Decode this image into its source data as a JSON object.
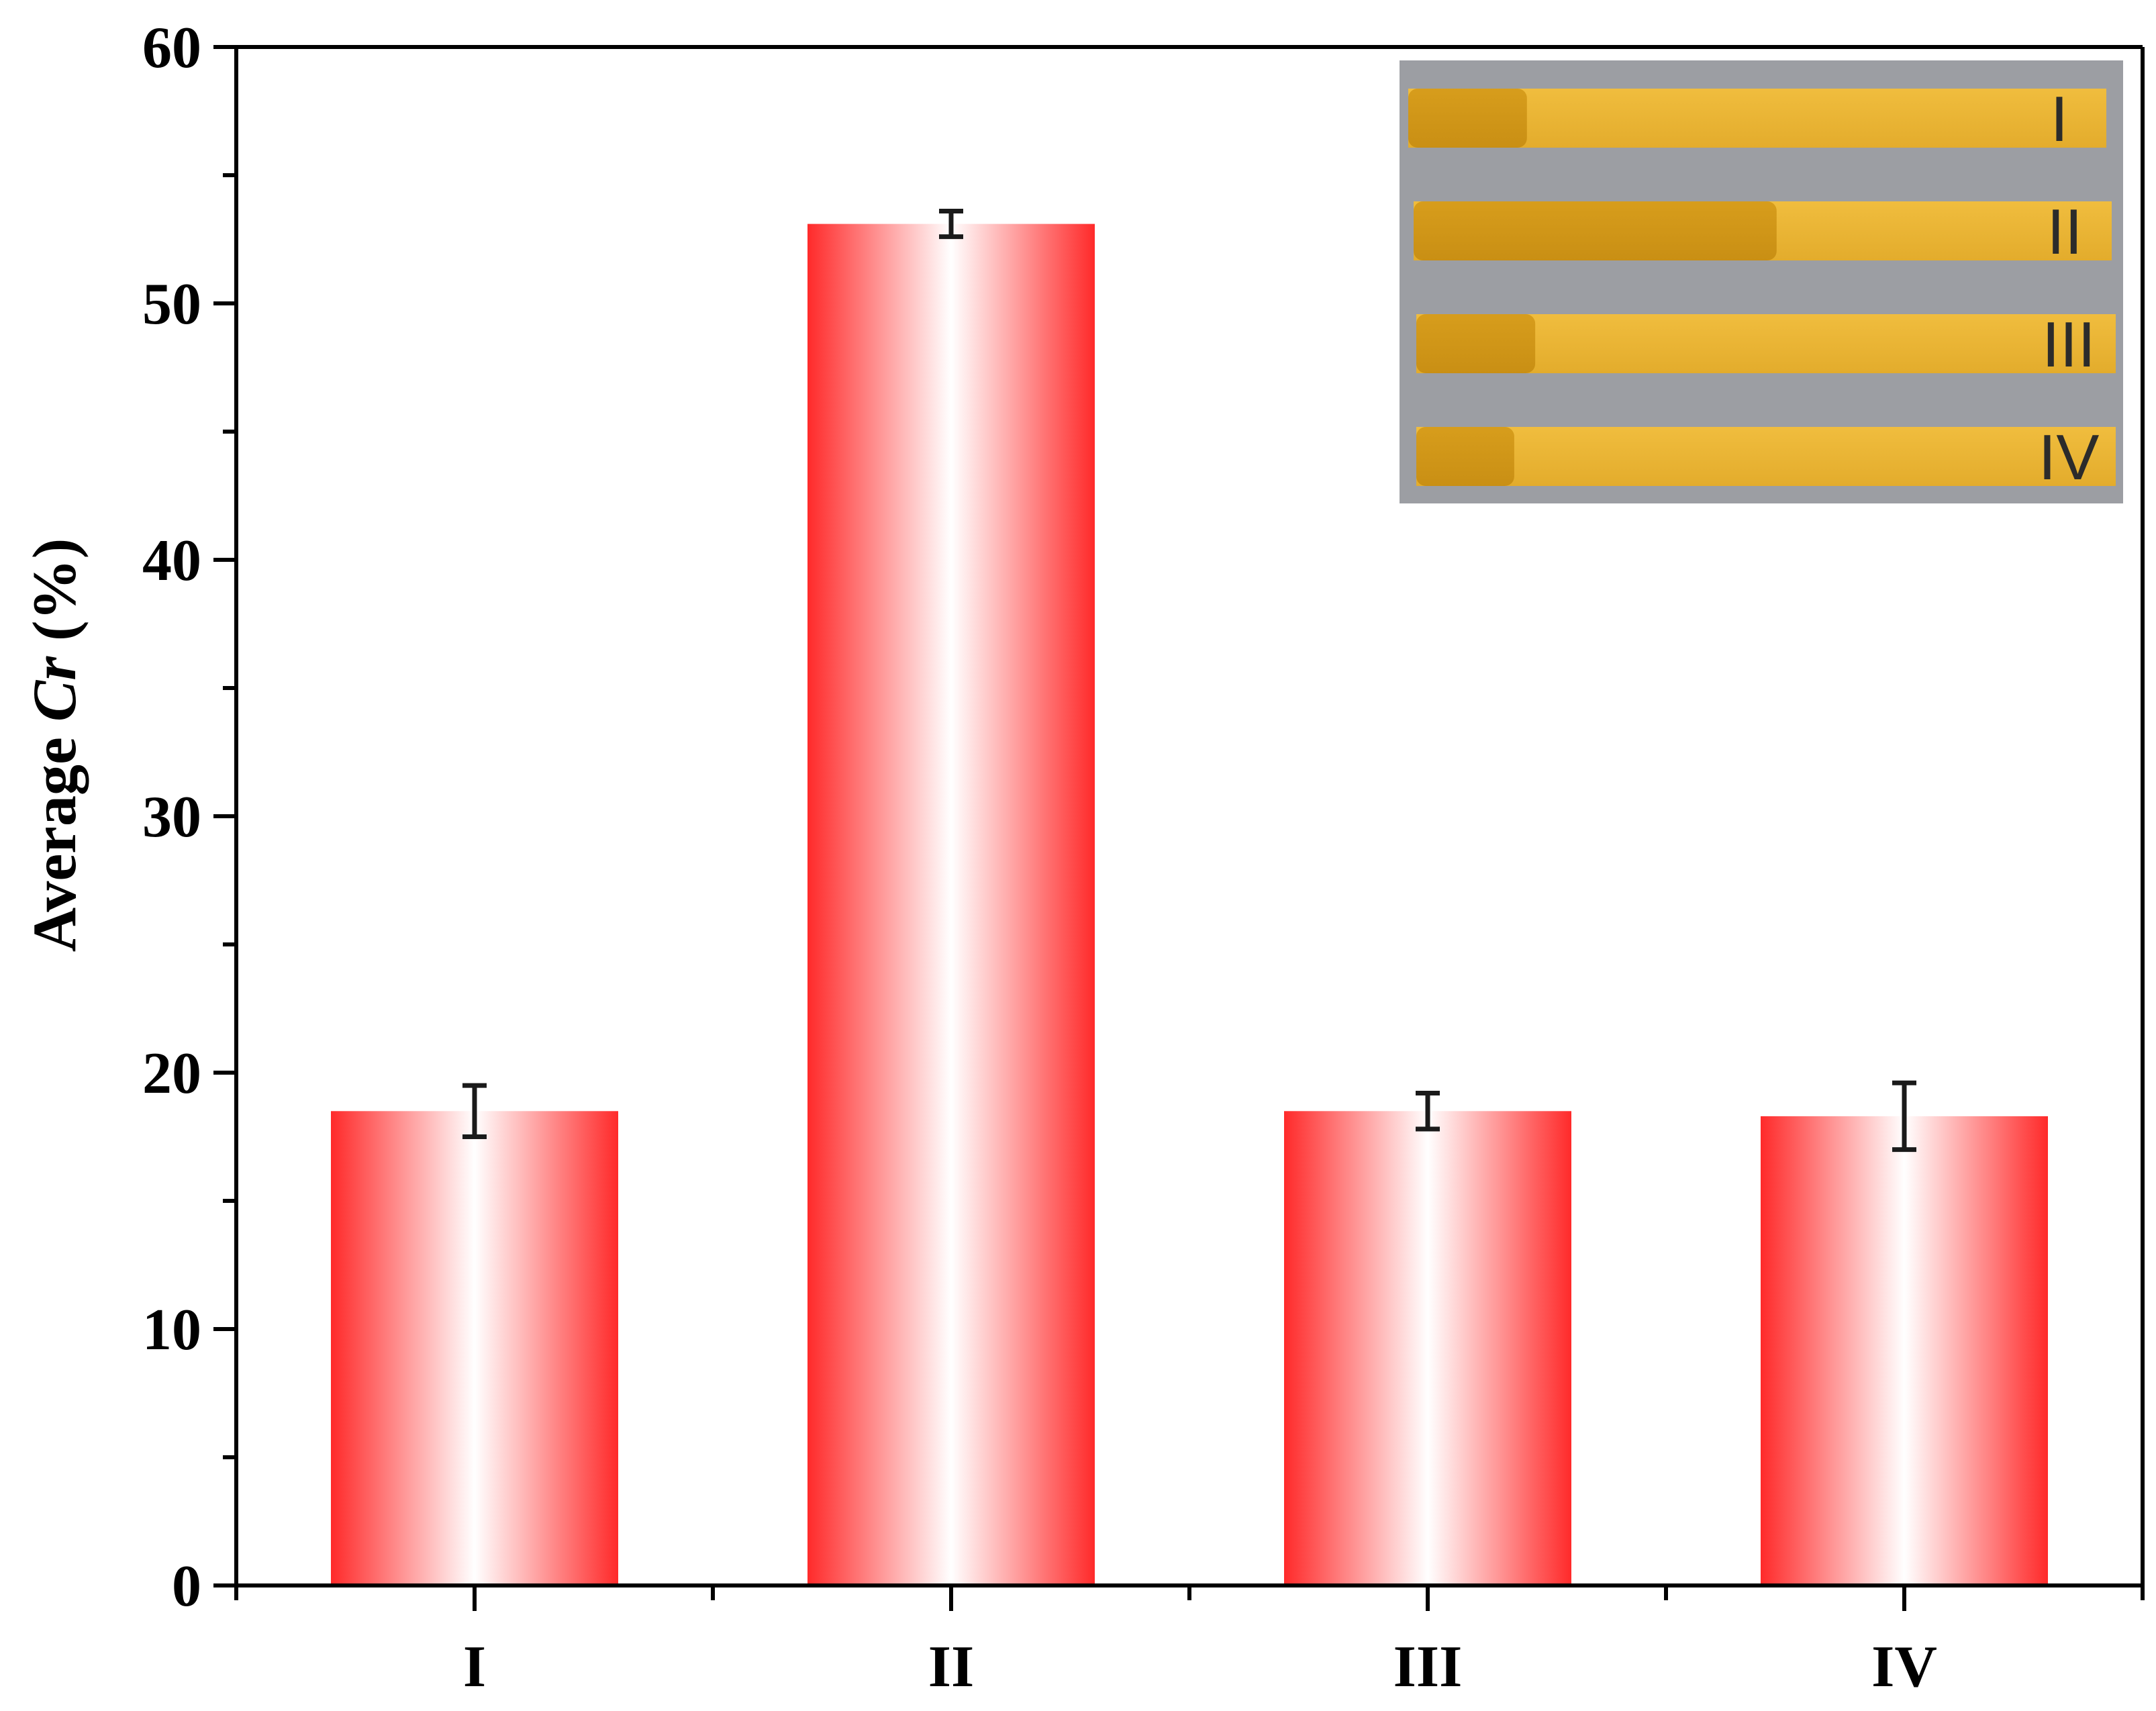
{
  "chart_data": {
    "type": "bar",
    "categories": [
      "I",
      "II",
      "III",
      "IV"
    ],
    "values": [
      18.5,
      53.1,
      18.5,
      18.3
    ],
    "errors": [
      1.0,
      0.5,
      0.7,
      1.3
    ],
    "ylabel_prefix": "Average ",
    "ylabel_italic": "Cr",
    "ylabel_suffix": " (%)",
    "ylim": [
      0,
      60
    ],
    "yticks": [
      "0",
      "10",
      "20",
      "30",
      "40",
      "50",
      "60"
    ],
    "grid": false,
    "bar_color": "#ff2a2a",
    "inset": {
      "labels": [
        "I",
        "II",
        "III",
        "IV"
      ],
      "strip_color": "#e8b43a",
      "wet_fraction": [
        0.17,
        0.52,
        0.17,
        0.14
      ]
    }
  }
}
